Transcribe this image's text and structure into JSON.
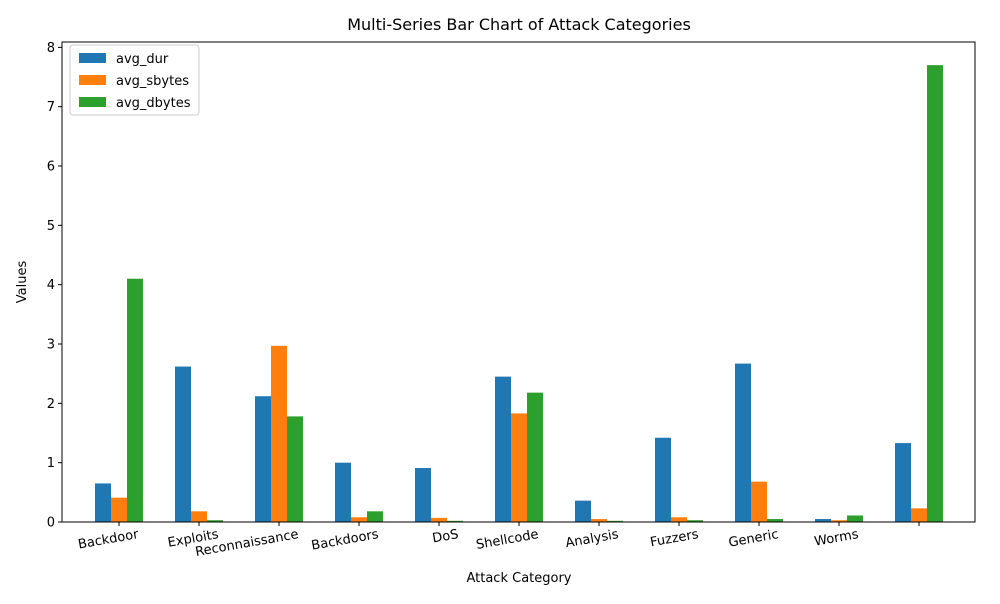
{
  "chart_data": {
    "type": "bar",
    "title": "Multi-Series Bar Chart of Attack Categories",
    "xlabel": "Attack Category",
    "ylabel": "Values",
    "categories": [
      "Backdoor",
      "Exploits",
      "Reconnaissance",
      "Backdoors",
      "DoS",
      "Shellcode",
      "Analysis",
      "Fuzzers",
      "Generic",
      "Worms",
      ""
    ],
    "series": [
      {
        "name": "avg_dur",
        "color": "#1f77b4",
        "values": [
          0.65,
          2.62,
          2.12,
          1.0,
          0.91,
          2.45,
          0.36,
          1.42,
          2.67,
          0.05,
          1.33
        ]
      },
      {
        "name": "avg_sbytes",
        "color": "#ff7f0e",
        "values": [
          0.41,
          0.18,
          2.97,
          0.08,
          0.07,
          1.83,
          0.05,
          0.08,
          0.68,
          0.03,
          0.23
        ]
      },
      {
        "name": "avg_dbytes",
        "color": "#2ca02c",
        "values": [
          4.1,
          0.03,
          1.78,
          0.18,
          0.02,
          2.18,
          0.02,
          0.03,
          0.05,
          0.11,
          7.7
        ]
      }
    ],
    "yticks": [
      0,
      1,
      2,
      3,
      4,
      5,
      6,
      7,
      8
    ],
    "ylim": [
      0,
      8.09
    ],
    "grid": false,
    "legend_position": "top-left"
  }
}
